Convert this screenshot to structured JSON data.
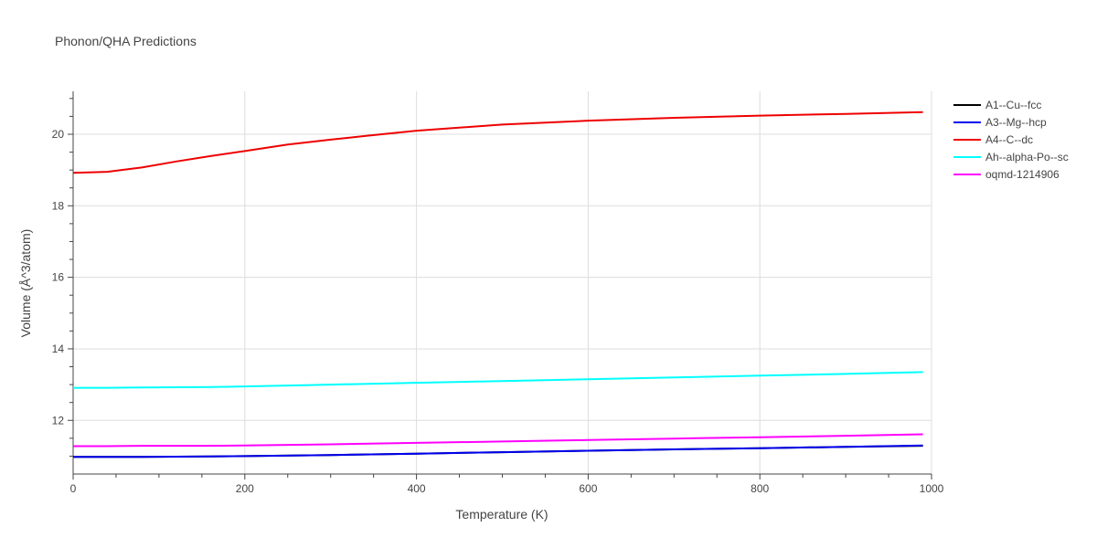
{
  "chart_data": {
    "type": "line",
    "title": "Phonon/QHA Predictions",
    "xlabel": "Temperature (K)",
    "ylabel": "Volume (Å^3/atom)",
    "xlim": [
      0,
      1000
    ],
    "ylim": [
      10.5,
      21.2
    ],
    "xticks": [
      0,
      200,
      400,
      600,
      800,
      1000
    ],
    "yticks": [
      12,
      14,
      16,
      18,
      20
    ],
    "grid": true,
    "legend": "top-right",
    "series": [
      {
        "name": "A1--Cu--fcc",
        "color": "#000000",
        "x": [
          0,
          40,
          80,
          160,
          200,
          300,
          400,
          500,
          600,
          700,
          800,
          900,
          990
        ],
        "y": [
          10.98,
          10.98,
          10.98,
          10.99,
          11.0,
          11.03,
          11.07,
          11.11,
          11.15,
          11.19,
          11.22,
          11.26,
          11.29
        ]
      },
      {
        "name": "A3--Mg--hcp",
        "color": "#0000ee",
        "x": [
          0,
          40,
          80,
          160,
          200,
          300,
          400,
          500,
          600,
          700,
          800,
          900,
          990
        ],
        "y": [
          10.98,
          10.98,
          10.98,
          10.99,
          11.0,
          11.03,
          11.07,
          11.11,
          11.15,
          11.19,
          11.22,
          11.26,
          11.3
        ]
      },
      {
        "name": "A4--C--dc",
        "color": "#ee0000",
        "x": [
          0,
          40,
          80,
          120,
          160,
          200,
          250,
          300,
          340,
          400,
          500,
          600,
          700,
          800,
          900,
          990
        ],
        "y": [
          18.92,
          18.95,
          19.07,
          19.24,
          19.39,
          19.53,
          19.71,
          19.85,
          19.95,
          20.1,
          20.27,
          20.38,
          20.46,
          20.52,
          20.57,
          20.62
        ]
      },
      {
        "name": "Ah--alpha-Po--sc",
        "color": "#00ffff",
        "x": [
          0,
          40,
          80,
          160,
          200,
          300,
          400,
          500,
          600,
          700,
          800,
          900,
          990
        ],
        "y": [
          12.91,
          12.91,
          12.92,
          12.93,
          12.95,
          13.0,
          13.05,
          13.1,
          13.15,
          13.2,
          13.25,
          13.3,
          13.35
        ]
      },
      {
        "name": "oqmd-1214906",
        "color": "#ff00ff",
        "x": [
          0,
          40,
          80,
          160,
          200,
          300,
          400,
          500,
          600,
          700,
          800,
          900,
          990
        ],
        "y": [
          11.28,
          11.28,
          11.29,
          11.29,
          11.3,
          11.33,
          11.37,
          11.41,
          11.45,
          11.49,
          11.53,
          11.57,
          11.61
        ]
      }
    ]
  }
}
